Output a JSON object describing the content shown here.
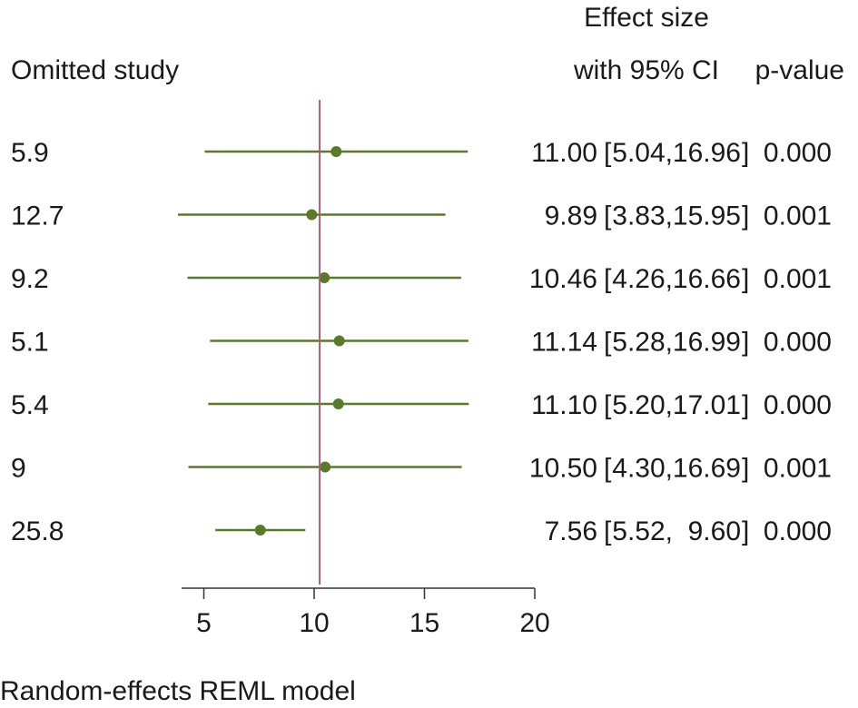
{
  "chart_data": {
    "type": "forest",
    "header": {
      "study_col": "Omitted study",
      "effect_col_line1": "Effect size",
      "effect_col_line2": "with 95% CI",
      "pvalue_col": "p-value"
    },
    "rows": [
      {
        "label": "5.9",
        "effect": 11.0,
        "ci_low": 5.04,
        "ci_high": 16.96,
        "effect_text": "11.00",
        "low_text": "5.04",
        "high_text": "16.96",
        "p": "0.000"
      },
      {
        "label": "12.7",
        "effect": 9.89,
        "ci_low": 3.83,
        "ci_high": 15.95,
        "effect_text": "9.89",
        "low_text": "3.83",
        "high_text": "15.95",
        "p": "0.001"
      },
      {
        "label": "9.2",
        "effect": 10.46,
        "ci_low": 4.26,
        "ci_high": 16.66,
        "effect_text": "10.46",
        "low_text": "4.26",
        "high_text": "16.66",
        "p": "0.001"
      },
      {
        "label": "5.1",
        "effect": 11.14,
        "ci_low": 5.28,
        "ci_high": 16.99,
        "effect_text": "11.14",
        "low_text": "5.28",
        "high_text": "16.99",
        "p": "0.000"
      },
      {
        "label": "5.4",
        "effect": 11.1,
        "ci_low": 5.2,
        "ci_high": 17.01,
        "effect_text": "11.10",
        "low_text": "5.20",
        "high_text": "17.01",
        "p": "0.000"
      },
      {
        "label": "9",
        "effect": 10.5,
        "ci_low": 4.3,
        "ci_high": 16.69,
        "effect_text": "10.50",
        "low_text": "4.30",
        "high_text": "16.69",
        "p": "0.001"
      },
      {
        "label": "25.8",
        "effect": 7.56,
        "ci_low": 5.52,
        "ci_high": 9.6,
        "effect_text": "7.56",
        "low_text": "5.52",
        "high_text": "9.60",
        "p": "0.000"
      }
    ],
    "reference_line": 10.25,
    "xlim": [
      4,
      20
    ],
    "xticks": [
      5,
      10,
      15,
      20
    ],
    "footnote": "Random-effects REML model",
    "colors": {
      "ci_line": "#5a7a2b",
      "marker": "#5a7a2b",
      "reference_line": "#b05a7a",
      "axis": "#333333"
    }
  }
}
